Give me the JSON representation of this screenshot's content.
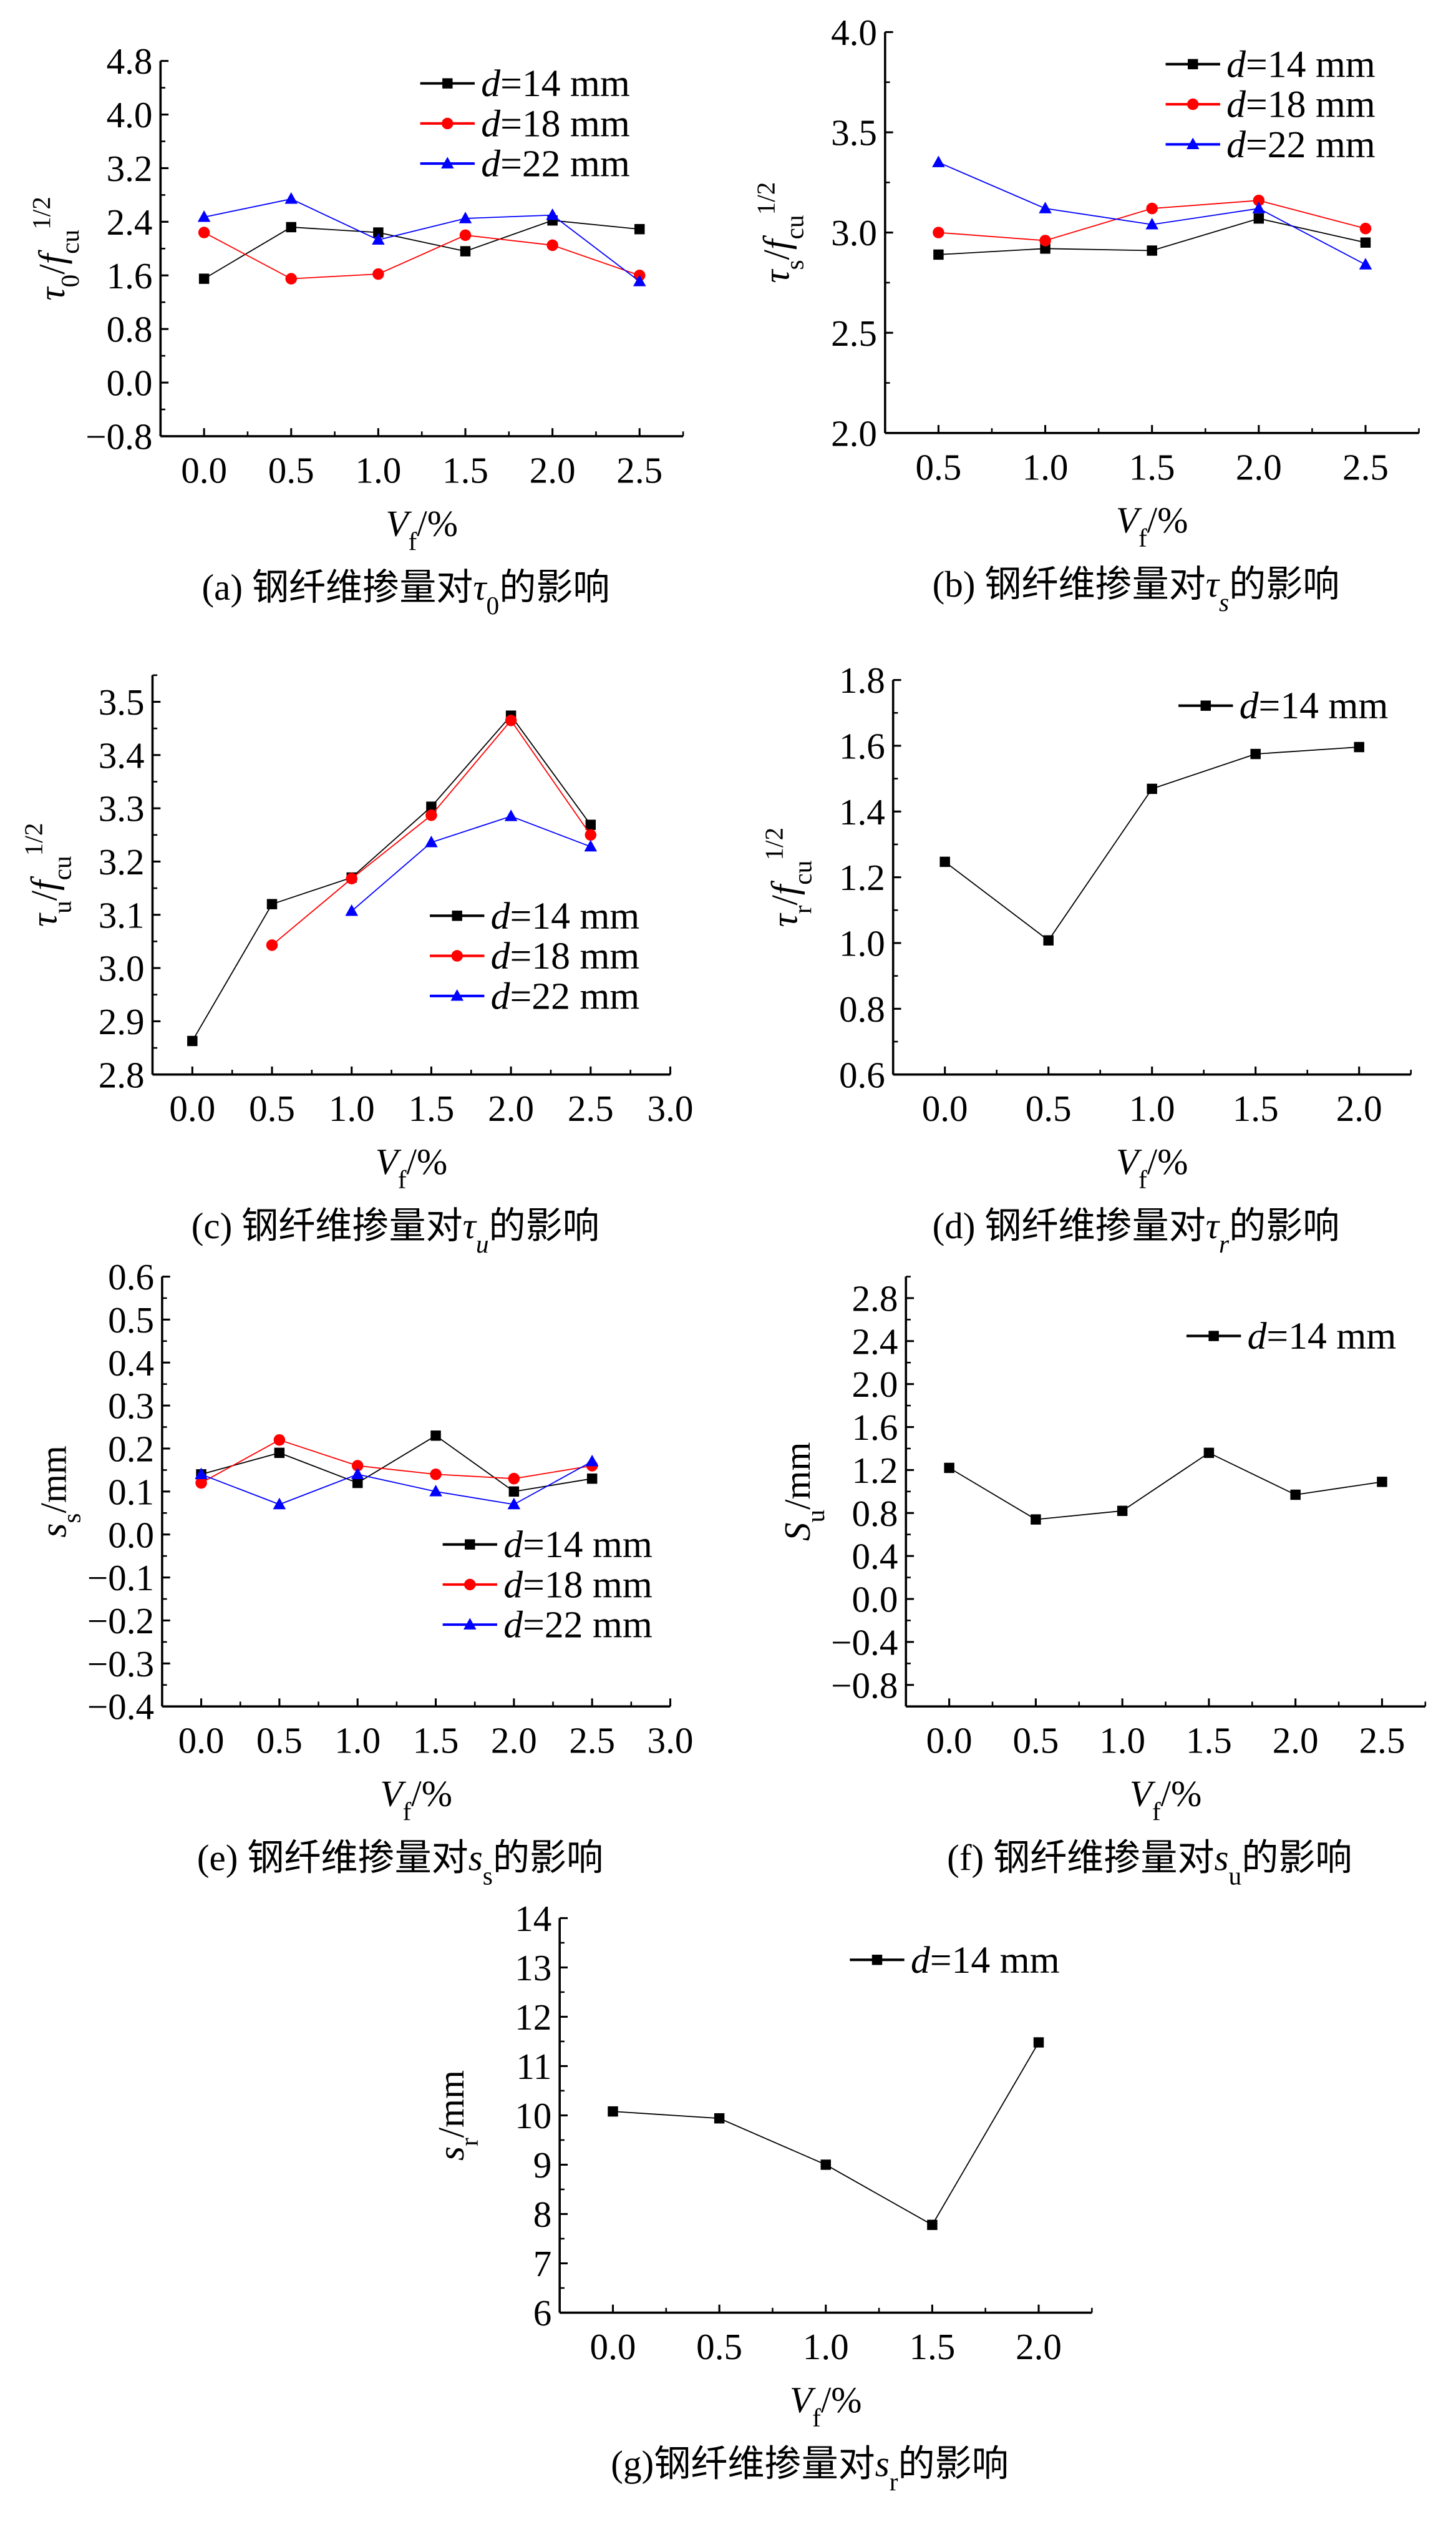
{
  "chart_data": [
    {
      "id": "a",
      "type": "line",
      "caption": [
        {
          "t": "(a) 钢纤维掺量对"
        },
        {
          "t": "τ",
          "s": "i"
        },
        {
          "t": "0",
          "s": "sub"
        },
        {
          "t": "的影响"
        }
      ],
      "xlabel": [
        {
          "t": "V",
          "s": "i"
        },
        {
          "t": "f",
          "s": "sub"
        },
        {
          "t": "/%"
        }
      ],
      "ylabel": [
        {
          "t": "τ",
          "s": "i"
        },
        {
          "t": "0",
          "s": "sub"
        },
        {
          "t": "/"
        },
        {
          "t": "f",
          "s": "i"
        },
        {
          "t": "cu",
          "s": "sub"
        },
        {
          "t": "1/2",
          "s": "sup"
        }
      ],
      "xlim": [
        -0.25,
        2.75
      ],
      "ylim": [
        -0.8,
        4.8
      ],
      "xticks": [
        0.0,
        0.5,
        1.0,
        1.5,
        2.0,
        2.5
      ],
      "xdec": 1,
      "yticks": [
        -0.8,
        0.0,
        0.8,
        1.6,
        2.4,
        3.2,
        4.0,
        4.8
      ],
      "ydec": 1,
      "legend_position": "top-right",
      "series": [
        {
          "name": [
            {
              "t": "d",
              "s": "i"
            },
            {
              "t": "=14 mm"
            }
          ],
          "color": "#000000",
          "marker": "square",
          "x": [
            0.0,
            0.5,
            1.0,
            1.5,
            2.0,
            2.5
          ],
          "y": [
            1.55,
            2.32,
            2.24,
            1.96,
            2.42,
            2.29
          ]
        },
        {
          "name": [
            {
              "t": "d",
              "s": "i"
            },
            {
              "t": "=18 mm"
            }
          ],
          "color": "#ff0000",
          "marker": "circle",
          "x": [
            0.0,
            0.5,
            1.0,
            1.5,
            2.0,
            2.5
          ],
          "y": [
            2.24,
            1.55,
            1.62,
            2.2,
            2.05,
            1.6
          ]
        },
        {
          "name": [
            {
              "t": "d",
              "s": "i"
            },
            {
              "t": "=22 mm"
            }
          ],
          "color": "#0000ff",
          "marker": "triangle",
          "x": [
            0.0,
            0.5,
            1.0,
            1.5,
            2.0,
            2.5
          ],
          "y": [
            2.47,
            2.74,
            2.13,
            2.45,
            2.5,
            1.51
          ]
        }
      ]
    },
    {
      "id": "b",
      "type": "line",
      "caption": [
        {
          "t": "(b) 钢纤维掺量对"
        },
        {
          "t": "τ",
          "s": "i"
        },
        {
          "t": "s",
          "s": "subi"
        },
        {
          "t": "的影响"
        }
      ],
      "xlabel": [
        {
          "t": "V",
          "s": "i"
        },
        {
          "t": "f",
          "s": "sub"
        },
        {
          "t": "/%"
        }
      ],
      "ylabel": [
        {
          "t": "τ",
          "s": "i"
        },
        {
          "t": "s",
          "s": "sub"
        },
        {
          "t": "/"
        },
        {
          "t": "f",
          "s": "i"
        },
        {
          "t": "cu",
          "s": "sub"
        },
        {
          "t": "1/2",
          "s": "sup"
        }
      ],
      "xlim": [
        0.25,
        2.75
      ],
      "ylim": [
        2.0,
        4.0
      ],
      "xticks": [
        0.5,
        1.0,
        1.5,
        2.0,
        2.5
      ],
      "xdec": 1,
      "yticks": [
        2.0,
        2.5,
        3.0,
        3.5,
        4.0
      ],
      "ydec": 1,
      "legend_position": "top-right",
      "series": [
        {
          "name": [
            {
              "t": "d",
              "s": "i"
            },
            {
              "t": "=14 mm"
            }
          ],
          "color": "#000000",
          "marker": "square",
          "x": [
            0.5,
            1.0,
            1.5,
            2.0,
            2.5
          ],
          "y": [
            2.89,
            2.92,
            2.91,
            3.07,
            2.95
          ]
        },
        {
          "name": [
            {
              "t": "d",
              "s": "i"
            },
            {
              "t": "=18 mm"
            }
          ],
          "color": "#ff0000",
          "marker": "circle",
          "x": [
            0.5,
            1.0,
            1.5,
            2.0,
            2.5
          ],
          "y": [
            3.0,
            2.96,
            3.12,
            3.16,
            3.02
          ]
        },
        {
          "name": [
            {
              "t": "d",
              "s": "i"
            },
            {
              "t": "=22 mm"
            }
          ],
          "color": "#0000ff",
          "marker": "triangle",
          "x": [
            0.5,
            1.0,
            1.5,
            2.0,
            2.5
          ],
          "y": [
            3.35,
            3.12,
            3.04,
            3.12,
            2.84
          ]
        }
      ]
    },
    {
      "id": "c",
      "type": "line",
      "caption": [
        {
          "t": "(c) 钢纤维掺量对"
        },
        {
          "t": "τ",
          "s": "i"
        },
        {
          "t": "u",
          "s": "subi"
        },
        {
          "t": "的影响"
        }
      ],
      "xlabel": [
        {
          "t": "V",
          "s": "i"
        },
        {
          "t": "f",
          "s": "sub"
        },
        {
          "t": "/%"
        }
      ],
      "ylabel": [
        {
          "t": "τ",
          "s": "i"
        },
        {
          "t": "u",
          "s": "sub"
        },
        {
          "t": "/"
        },
        {
          "t": "f",
          "s": "i"
        },
        {
          "t": "cu",
          "s": "sub"
        },
        {
          "t": "1/2",
          "s": "sup"
        }
      ],
      "xlim": [
        -0.25,
        3.0
      ],
      "ylim": [
        2.8,
        3.55
      ],
      "xticks": [
        0.0,
        0.5,
        1.0,
        1.5,
        2.0,
        2.5,
        3.0
      ],
      "xdec": 1,
      "yticks": [
        2.8,
        2.9,
        3.0,
        3.1,
        3.2,
        3.3,
        3.4,
        3.5
      ],
      "ydec": 1,
      "legend_position": "lower-right",
      "series": [
        {
          "name": [
            {
              "t": "d",
              "s": "i"
            },
            {
              "t": "=14 mm"
            }
          ],
          "color": "#000000",
          "marker": "square",
          "x": [
            0.0,
            0.5,
            1.0,
            1.5,
            2.0,
            2.5
          ],
          "y": [
            2.863,
            3.12,
            3.17,
            3.303,
            3.474,
            3.269
          ]
        },
        {
          "name": [
            {
              "t": "d",
              "s": "i"
            },
            {
              "t": "=18 mm"
            }
          ],
          "color": "#ff0000",
          "marker": "circle",
          "x": [
            0.5,
            1.0,
            1.5,
            2.0,
            2.5
          ],
          "y": [
            3.043,
            3.168,
            3.287,
            3.465,
            3.25
          ]
        },
        {
          "name": [
            {
              "t": "d",
              "s": "i"
            },
            {
              "t": "=22 mm"
            }
          ],
          "color": "#0000ff",
          "marker": "triangle",
          "x": [
            1.0,
            1.5,
            2.0,
            2.5
          ],
          "y": [
            3.107,
            3.236,
            3.285,
            3.228
          ]
        }
      ]
    },
    {
      "id": "d",
      "type": "line",
      "caption": [
        {
          "t": "(d) 钢纤维掺量对"
        },
        {
          "t": "τ",
          "s": "i"
        },
        {
          "t": "r",
          "s": "subi"
        },
        {
          "t": "的影响"
        }
      ],
      "xlabel": [
        {
          "t": "V",
          "s": "i"
        },
        {
          "t": "f",
          "s": "sub"
        },
        {
          "t": "/%"
        }
      ],
      "ylabel": [
        {
          "t": "τ",
          "s": "i"
        },
        {
          "t": "r",
          "s": "sub"
        },
        {
          "t": "/"
        },
        {
          "t": "f",
          "s": "i"
        },
        {
          "t": "cu",
          "s": "sub"
        },
        {
          "t": "1/2",
          "s": "sup"
        }
      ],
      "xlim": [
        -0.25,
        2.25
      ],
      "ylim": [
        0.6,
        1.8
      ],
      "xticks": [
        0.0,
        0.5,
        1.0,
        1.5,
        2.0
      ],
      "xdec": 1,
      "yticks": [
        0.6,
        0.8,
        1.0,
        1.2,
        1.4,
        1.6,
        1.8
      ],
      "ydec": 1,
      "legend_position": "top-right",
      "series": [
        {
          "name": [
            {
              "t": "d",
              "s": "i"
            },
            {
              "t": "=14 mm"
            }
          ],
          "color": "#000000",
          "marker": "square",
          "x": [
            0.0,
            0.5,
            1.0,
            1.5,
            2.0
          ],
          "y": [
            1.247,
            1.008,
            1.469,
            1.575,
            1.596
          ]
        }
      ]
    },
    {
      "id": "e",
      "type": "line",
      "caption": [
        {
          "t": "(e) 钢纤维掺量对"
        },
        {
          "t": "s",
          "s": "i"
        },
        {
          "t": "s",
          "s": "sub"
        },
        {
          "t": "的影响"
        }
      ],
      "xlabel": [
        {
          "t": "V",
          "s": "i"
        },
        {
          "t": "f",
          "s": "sub"
        },
        {
          "t": "/%"
        }
      ],
      "ylabel": [
        {
          "t": "s",
          "s": "i"
        },
        {
          "t": "s",
          "s": "sub"
        },
        {
          "t": "/mm"
        }
      ],
      "xlim": [
        -0.25,
        3.0
      ],
      "ylim": [
        -0.4,
        0.6
      ],
      "xticks": [
        0.0,
        0.5,
        1.0,
        1.5,
        2.0,
        2.5,
        3.0
      ],
      "xdec": 1,
      "yticks": [
        -0.4,
        -0.3,
        -0.2,
        -0.1,
        0.0,
        0.1,
        0.2,
        0.3,
        0.4,
        0.5,
        0.6
      ],
      "ydec": 1,
      "legend_position": "lower-right",
      "series": [
        {
          "name": [
            {
              "t": "d",
              "s": "i"
            },
            {
              "t": "=14 mm"
            }
          ],
          "color": "#000000",
          "marker": "square",
          "x": [
            0.0,
            0.5,
            1.0,
            1.5,
            2.0,
            2.5
          ],
          "y": [
            0.14,
            0.19,
            0.12,
            0.23,
            0.1,
            0.13
          ]
        },
        {
          "name": [
            {
              "t": "d",
              "s": "i"
            },
            {
              "t": "=18 mm"
            }
          ],
          "color": "#ff0000",
          "marker": "circle",
          "x": [
            0.0,
            0.5,
            1.0,
            1.5,
            2.0,
            2.5
          ],
          "y": [
            0.12,
            0.22,
            0.16,
            0.14,
            0.13,
            0.16
          ]
        },
        {
          "name": [
            {
              "t": "d",
              "s": "i"
            },
            {
              "t": "=22 mm"
            }
          ],
          "color": "#0000ff",
          "marker": "triangle",
          "x": [
            0.0,
            0.5,
            1.0,
            1.5,
            2.0,
            2.5
          ],
          "y": [
            0.14,
            0.07,
            0.14,
            0.1,
            0.07,
            0.17
          ]
        }
      ]
    },
    {
      "id": "f",
      "type": "line",
      "caption": [
        {
          "t": "(f) 钢纤维掺量对"
        },
        {
          "t": "s",
          "s": "i"
        },
        {
          "t": "u",
          "s": "sub"
        },
        {
          "t": "的影响"
        }
      ],
      "xlabel": [
        {
          "t": "V",
          "s": "i"
        },
        {
          "t": "f",
          "s": "sub"
        },
        {
          "t": "/%"
        }
      ],
      "ylabel": [
        {
          "t": "S",
          "s": "i"
        },
        {
          "t": "u",
          "s": "sub"
        },
        {
          "t": "/mm"
        }
      ],
      "xlim": [
        -0.25,
        2.75
      ],
      "ylim": [
        -1.0,
        3.0
      ],
      "xticks": [
        0.0,
        0.5,
        1.0,
        1.5,
        2.0,
        2.5
      ],
      "xdec": 1,
      "yticks": [
        -0.8,
        -0.4,
        0.0,
        0.4,
        0.8,
        1.2,
        1.6,
        2.0,
        2.4,
        2.8
      ],
      "ydec": 1,
      "legend_position": "top-right",
      "series": [
        {
          "name": [
            {
              "t": "d",
              "s": "i"
            },
            {
              "t": "=14 mm"
            }
          ],
          "color": "#000000",
          "marker": "square",
          "x": [
            0.0,
            0.5,
            1.0,
            1.5,
            2.0,
            2.5
          ],
          "y": [
            1.22,
            0.74,
            0.82,
            1.36,
            0.97,
            1.09
          ]
        }
      ]
    },
    {
      "id": "g",
      "type": "line",
      "caption": [
        {
          "t": "(g)钢纤维掺量对"
        },
        {
          "t": "s",
          "s": "i"
        },
        {
          "t": "r",
          "s": "sub"
        },
        {
          "t": "的影响"
        }
      ],
      "xlabel": [
        {
          "t": "V",
          "s": "i"
        },
        {
          "t": "f",
          "s": "sub"
        },
        {
          "t": "/%"
        }
      ],
      "ylabel": [
        {
          "t": "s",
          "s": "i"
        },
        {
          "t": "r",
          "s": "sub"
        },
        {
          "t": "/mm"
        }
      ],
      "xlim": [
        -0.25,
        2.25
      ],
      "ylim": [
        6,
        14
      ],
      "xticks": [
        0.0,
        0.5,
        1.0,
        1.5,
        2.0
      ],
      "xdec": 1,
      "yticks": [
        6,
        7,
        8,
        9,
        10,
        11,
        12,
        13,
        14
      ],
      "ydec": 0,
      "legend_position": "top-right",
      "series": [
        {
          "name": [
            {
              "t": "d",
              "s": "i"
            },
            {
              "t": "=14 mm"
            }
          ],
          "color": "#000000",
          "marker": "square",
          "x": [
            0.0,
            0.5,
            1.0,
            1.5,
            2.0
          ],
          "y": [
            10.08,
            9.94,
            9.0,
            7.78,
            11.48
          ]
        }
      ]
    }
  ]
}
